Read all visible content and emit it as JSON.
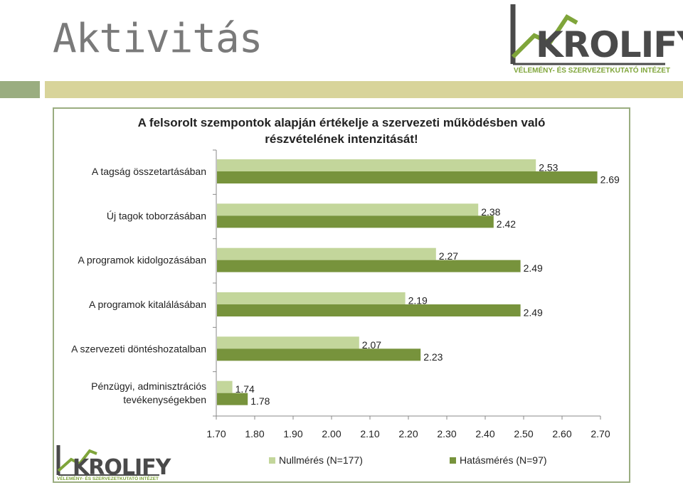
{
  "slide": {
    "title": "Aktivitás"
  },
  "logo": {
    "name": "KROLIFY",
    "tagline": "VÉLEMÉNY- ÉS SZERVEZETKUTATÓ INTÉZET"
  },
  "colors": {
    "light_series": "#c3d69b",
    "dark_series": "#77933c",
    "accent_bar_left": "#9aad80",
    "accent_bar_right": "#d8d49a"
  },
  "chart_data": {
    "type": "bar",
    "orientation": "horizontal",
    "title_lines": [
      "A felsorolt szempontok alapján értékelje  a szervezeti működésben való",
      "részvételének intenzitását!"
    ],
    "categories": [
      "A tagság összetartásában",
      "Új tagok toborzásában",
      "A programok kidolgozásában",
      "A programok kitalálásában",
      "A szervezeti döntéshozatalban",
      "Pénzügyi, adminisztrációs tevékenységekben"
    ],
    "category_lines": [
      [
        "A tagság összetartásában"
      ],
      [
        "Új tagok toborzásában"
      ],
      [
        "A programok kidolgozásában"
      ],
      [
        "A programok kitalálásában"
      ],
      [
        "A szervezeti döntéshozatalban"
      ],
      [
        "Pénzügyi, adminisztrációs",
        "tevékenységekben"
      ]
    ],
    "series": [
      {
        "name": "Nullmérés (N=177)",
        "color": "#c3d69b",
        "values": [
          2.53,
          2.38,
          2.27,
          2.19,
          2.07,
          1.74
        ]
      },
      {
        "name": "Hatásmérés (N=97)",
        "color": "#77933c",
        "values": [
          2.69,
          2.42,
          2.49,
          2.49,
          2.23,
          1.78
        ]
      }
    ],
    "xlim": [
      1.7,
      2.7
    ],
    "xticks": [
      "1.70",
      "1.80",
      "1.90",
      "2.00",
      "2.10",
      "2.20",
      "2.30",
      "2.40",
      "2.50",
      "2.60",
      "2.70"
    ],
    "data_labels": [
      [
        "2.53",
        "2.38",
        "2.27",
        "2.19",
        "2.07",
        "1.74"
      ],
      [
        "2.69",
        "2.42",
        "2.49",
        "2.49",
        "2.23",
        "1.78"
      ]
    ],
    "legend_position": "bottom",
    "grid": false
  }
}
